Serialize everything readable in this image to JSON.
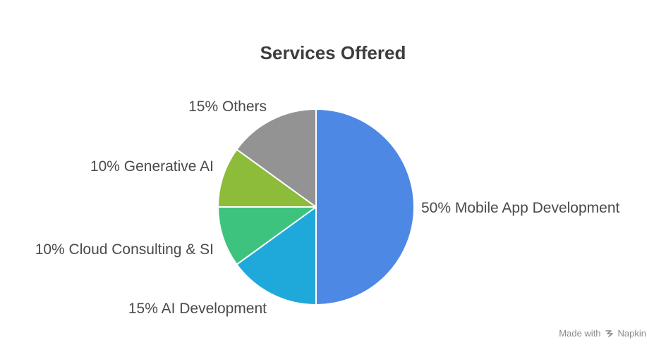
{
  "chart_data": {
    "type": "pie",
    "title": "Services Offered",
    "slices": [
      {
        "label": "Mobile App Development",
        "percent_text": "50%",
        "value": 50,
        "color": "#4E88E5"
      },
      {
        "label": "AI Development",
        "percent_text": "15%",
        "value": 15,
        "color": "#1FA9DB"
      },
      {
        "label": "Cloud Consulting & SI",
        "percent_text": "10%",
        "value": 10,
        "color": "#3EC37F"
      },
      {
        "label": "Generative AI",
        "percent_text": "10%",
        "value": 10,
        "color": "#8DBB3A"
      },
      {
        "label": "Others",
        "percent_text": "15%",
        "value": 15,
        "color": "#939393"
      }
    ]
  },
  "footer": {
    "made_with": "Made with",
    "brand": "Napkin"
  }
}
